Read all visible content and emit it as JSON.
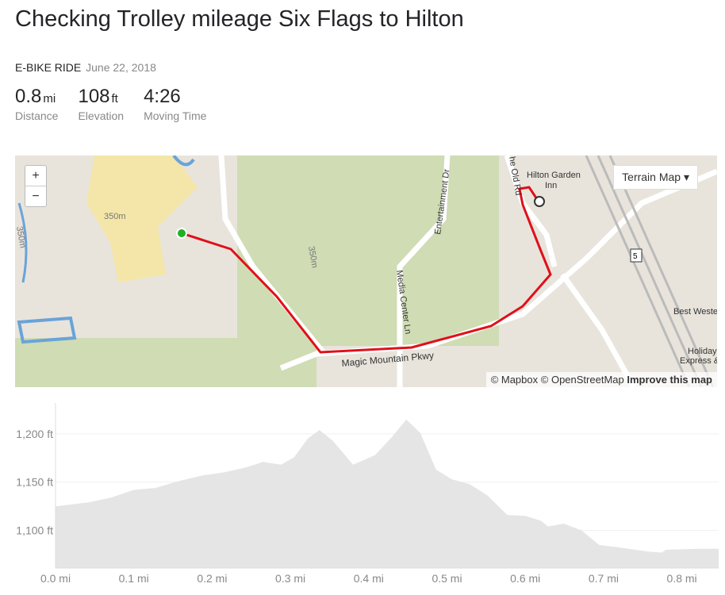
{
  "title": "Checking Trolley mileage Six Flags to Hilton",
  "activity_type": "E-BIKE RIDE",
  "date": "June 22, 2018",
  "stats": [
    {
      "value": "0.8",
      "unit": "mi",
      "label": "Distance"
    },
    {
      "value": "108",
      "unit": "ft",
      "label": "Elevation"
    },
    {
      "value": "4:26",
      "unit": "",
      "label": "Moving Time"
    }
  ],
  "map": {
    "zoom_in": "+",
    "zoom_out": "−",
    "layer_select": "Terrain Map",
    "labels": {
      "hilton": "Hilton Garden",
      "hilton2": "Inn",
      "old_rd": "he Old Rd",
      "entertainment": "Entertainment Dr",
      "media": "Media Center Ln",
      "magic": "Magic Mountain Pkwy",
      "contour1": "350m",
      "contour2": "350m",
      "contour3": "350m",
      "freeway": "5",
      "best": "Best Weste",
      "holiday": "Holiday",
      "holiday2": "Express &"
    },
    "attribution": {
      "mapbox": "© Mapbox",
      "osm": "© OpenStreetMap",
      "improve": "Improve this map"
    },
    "colors": {
      "route": "#e0101a",
      "start": "#22b022",
      "road": "#ffffff",
      "green": "#cfdcb4"
    }
  },
  "chart_data": {
    "type": "area",
    "title": "",
    "xlabel": "",
    "ylabel": "",
    "xlim": [
      0,
      0.847
    ],
    "ylim": [
      1061,
      1232
    ],
    "x_ticks": [
      0.0,
      0.1,
      0.2,
      0.3,
      0.4,
      0.5,
      0.6,
      0.7,
      0.8
    ],
    "x_tick_labels": [
      "0.0 mi",
      "0.1 mi",
      "0.2 mi",
      "0.3 mi",
      "0.4 mi",
      "0.5 mi",
      "0.6 mi",
      "0.7 mi",
      "0.8 mi"
    ],
    "y_ticks": [
      1100,
      1150,
      1200
    ],
    "y_tick_labels": [
      "1,100 ft",
      "1,150 ft",
      "1,200 ft"
    ],
    "grid": true,
    "x": [
      0,
      0.042,
      0.071,
      0.1,
      0.128,
      0.157,
      0.188,
      0.214,
      0.242,
      0.265,
      0.288,
      0.305,
      0.322,
      0.337,
      0.354,
      0.38,
      0.408,
      0.431,
      0.448,
      0.466,
      0.486,
      0.506,
      0.529,
      0.552,
      0.577,
      0.6,
      0.62,
      0.629,
      0.649,
      0.672,
      0.694,
      0.723,
      0.757,
      0.774,
      0.78,
      0.82,
      0.847
    ],
    "y": [
      1125,
      1129,
      1134,
      1142,
      1144,
      1151,
      1157,
      1160,
      1165,
      1171,
      1168,
      1176,
      1195,
      1204,
      1193,
      1168,
      1178,
      1198,
      1215,
      1201,
      1163,
      1153,
      1148,
      1136,
      1116,
      1115,
      1110,
      1104,
      1107,
      1100,
      1085,
      1082,
      1078,
      1077,
      1080,
      1081,
      1081
    ],
    "fill_color": "#e5e5e5"
  }
}
